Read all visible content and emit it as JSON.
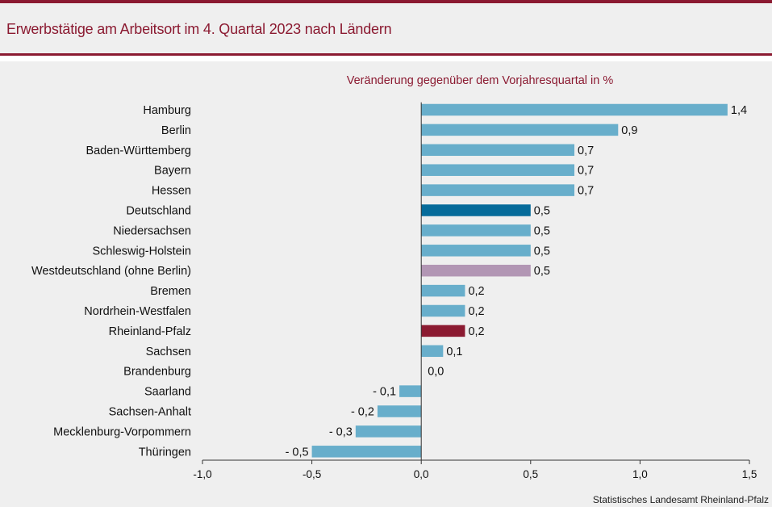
{
  "header": {
    "title": "Erwerbstätige am Arbeitsort im 4. Quartal 2023 nach Ländern"
  },
  "source": "Statistisches Landesamt Rheinland-Pfalz",
  "colors": {
    "accent": "#8b1a31",
    "bar_default": "#68aecb",
    "bar_germany": "#066b9a",
    "bar_west": "#b296b4",
    "bar_rlp": "#8b1a31",
    "background": "#efefef"
  },
  "chart_data": {
    "type": "bar",
    "orientation": "horizontal",
    "subtitle": "Veränderung gegenüber dem Vorjahresquartal in %",
    "xlim": [
      -1.0,
      1.5
    ],
    "xticks": [
      -1.0,
      -0.5,
      0.0,
      0.5,
      1.0,
      1.5
    ],
    "xtick_labels": [
      "-1,0",
      "-0,5",
      "0,0",
      "0,5",
      "1,0",
      "1,5"
    ],
    "grid": false,
    "categories": [
      "Hamburg",
      "Berlin",
      "Baden-Württemberg",
      "Bayern",
      "Hessen",
      "Deutschland",
      "Niedersachsen",
      "Schleswig-Holstein",
      "Westdeutschland (ohne Berlin)",
      "Bremen",
      "Nordrhein-Westfalen",
      "Rheinland-Pfalz",
      "Sachsen",
      "Brandenburg",
      "Saarland",
      "Sachsen-Anhalt",
      "Mecklenburg-Vorpommern",
      "Thüringen"
    ],
    "values": [
      1.4,
      0.9,
      0.7,
      0.7,
      0.7,
      0.5,
      0.5,
      0.5,
      0.5,
      0.2,
      0.2,
      0.2,
      0.1,
      0.0,
      -0.1,
      -0.2,
      -0.3,
      -0.5
    ],
    "value_labels": [
      "1,4",
      "0,9",
      "0,7",
      "0,7",
      "0,7",
      "0,5",
      "0,5",
      "0,5",
      "0,5",
      "0,2",
      "0,2",
      "0,2",
      "0,1",
      "0,0",
      "- 0,1",
      "- 0,2",
      "- 0,3",
      "- 0,5"
    ],
    "highlight": {
      "Deutschland": "#066b9a",
      "Westdeutschland (ohne Berlin)": "#b296b4",
      "Rheinland-Pfalz": "#8b1a31"
    }
  }
}
